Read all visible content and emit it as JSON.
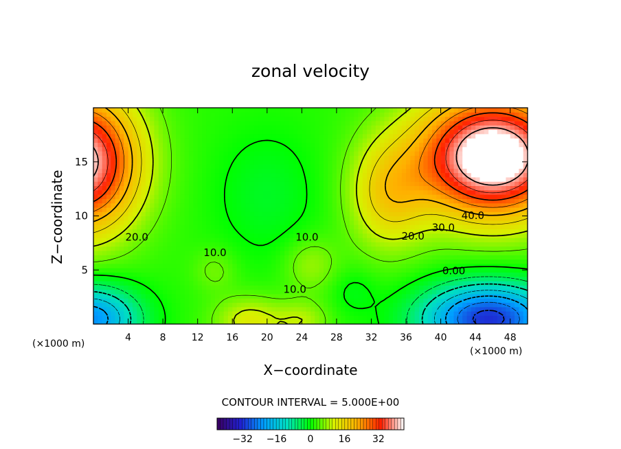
{
  "chart_data": {
    "type": "heatmap",
    "title": "zonal velocity",
    "xlabel": "X−coordinate",
    "ylabel": "Z−coordinate",
    "x_unit": "(×1000 m)",
    "z_unit": "(×1000 m)",
    "xlim": [
      0,
      50
    ],
    "ylim": [
      0,
      20
    ],
    "x_ticks": [
      "4",
      "8",
      "12",
      "16",
      "20",
      "24",
      "28",
      "32",
      "36",
      "40",
      "44",
      "48"
    ],
    "y_ticks": [
      "5",
      "10",
      "15"
    ],
    "x_tick_values": [
      4,
      8,
      12,
      16,
      20,
      24,
      28,
      32,
      36,
      40,
      44,
      48
    ],
    "y_tick_values": [
      5,
      10,
      15
    ],
    "contour_interval_text": "CONTOUR INTERVAL = 5.000E+00",
    "contour_interval": 5.0,
    "contour_labels": [
      {
        "text": "40.0",
        "x": 43.7,
        "z": 9.7
      },
      {
        "text": "30.0",
        "x": 40.3,
        "z": 8.6
      },
      {
        "text": "20.0",
        "x": 36.8,
        "z": 7.8
      },
      {
        "text": "20.0",
        "x": 5.0,
        "z": 7.7
      },
      {
        "text": "10.0",
        "x": 14.0,
        "z": 6.3
      },
      {
        "text": "10.0",
        "x": 24.6,
        "z": 7.7
      },
      {
        "text": "10.0",
        "x": 23.2,
        "z": 2.9
      },
      {
        "text": "0.00",
        "x": 41.5,
        "z": 4.6
      }
    ],
    "colorbar": {
      "ticks": [
        "−32",
        "−16",
        "0",
        "16",
        "32"
      ],
      "tick_values": [
        -32,
        -16,
        0,
        16,
        32
      ],
      "range": [
        -44,
        44
      ]
    },
    "colormap": [
      "#3a0060",
      "#2020d0",
      "#00a0ff",
      "#00e0c0",
      "#00ff00",
      "#d8f000",
      "#ffb000",
      "#ff2000",
      "#ffffff"
    ],
    "value_range": [
      -44,
      44
    ]
  }
}
